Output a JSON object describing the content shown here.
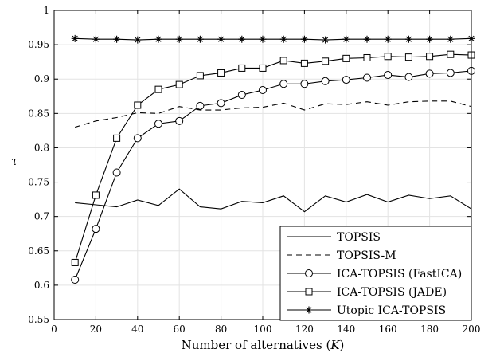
{
  "chart_data": {
    "type": "line",
    "title": "",
    "xlabel": "Number of alternatives (",
    "xlabel_symbol": "K",
    "xlabel_suffix": ")",
    "ylabel": "τ",
    "xlim": [
      0,
      200
    ],
    "ylim": [
      0.55,
      1
    ],
    "xticks": [
      "0",
      "20",
      "40",
      "60",
      "80",
      "100",
      "120",
      "140",
      "160",
      "180",
      "200"
    ],
    "yticks": [
      "0.55",
      "0.6",
      "0.65",
      "0.7",
      "0.75",
      "0.8",
      "0.85",
      "0.9",
      "0.95",
      "1"
    ],
    "grid": true,
    "legend_position": "bottom-right",
    "x": [
      10,
      20,
      30,
      40,
      50,
      60,
      70,
      80,
      90,
      100,
      110,
      120,
      130,
      140,
      150,
      160,
      170,
      180,
      190,
      200
    ],
    "series": [
      {
        "name": "TOPSIS",
        "line_style": "solid",
        "marker": "none",
        "values": [
          0.72,
          0.717,
          0.714,
          0.724,
          0.716,
          0.74,
          0.714,
          0.711,
          0.722,
          0.72,
          0.73,
          0.707,
          0.73,
          0.721,
          0.732,
          0.721,
          0.731,
          0.726,
          0.73,
          0.711
        ]
      },
      {
        "name": "TOPSIS-M",
        "line_style": "dashed",
        "marker": "none",
        "values": [
          0.83,
          0.839,
          0.844,
          0.851,
          0.85,
          0.86,
          0.855,
          0.855,
          0.858,
          0.859,
          0.865,
          0.855,
          0.864,
          0.863,
          0.867,
          0.862,
          0.867,
          0.868,
          0.868,
          0.86
        ]
      },
      {
        "name": "ICA-TOPSIS (FastICA)",
        "line_style": "solid",
        "marker": "circle",
        "values": [
          0.608,
          0.682,
          0.764,
          0.814,
          0.835,
          0.839,
          0.861,
          0.865,
          0.877,
          0.884,
          0.893,
          0.893,
          0.897,
          0.899,
          0.902,
          0.906,
          0.903,
          0.908,
          0.909,
          0.912
        ]
      },
      {
        "name": "ICA-TOPSIS (JADE)",
        "line_style": "solid",
        "marker": "square",
        "values": [
          0.633,
          0.731,
          0.814,
          0.862,
          0.885,
          0.892,
          0.905,
          0.909,
          0.916,
          0.916,
          0.927,
          0.923,
          0.926,
          0.93,
          0.931,
          0.933,
          0.932,
          0.933,
          0.936,
          0.935
        ]
      },
      {
        "name": "Utopic ICA-TOPSIS",
        "line_style": "solid",
        "marker": "asterisk",
        "values": [
          0.959,
          0.958,
          0.958,
          0.957,
          0.958,
          0.958,
          0.958,
          0.958,
          0.958,
          0.958,
          0.958,
          0.958,
          0.957,
          0.958,
          0.958,
          0.958,
          0.958,
          0.958,
          0.958,
          0.959
        ]
      }
    ]
  }
}
